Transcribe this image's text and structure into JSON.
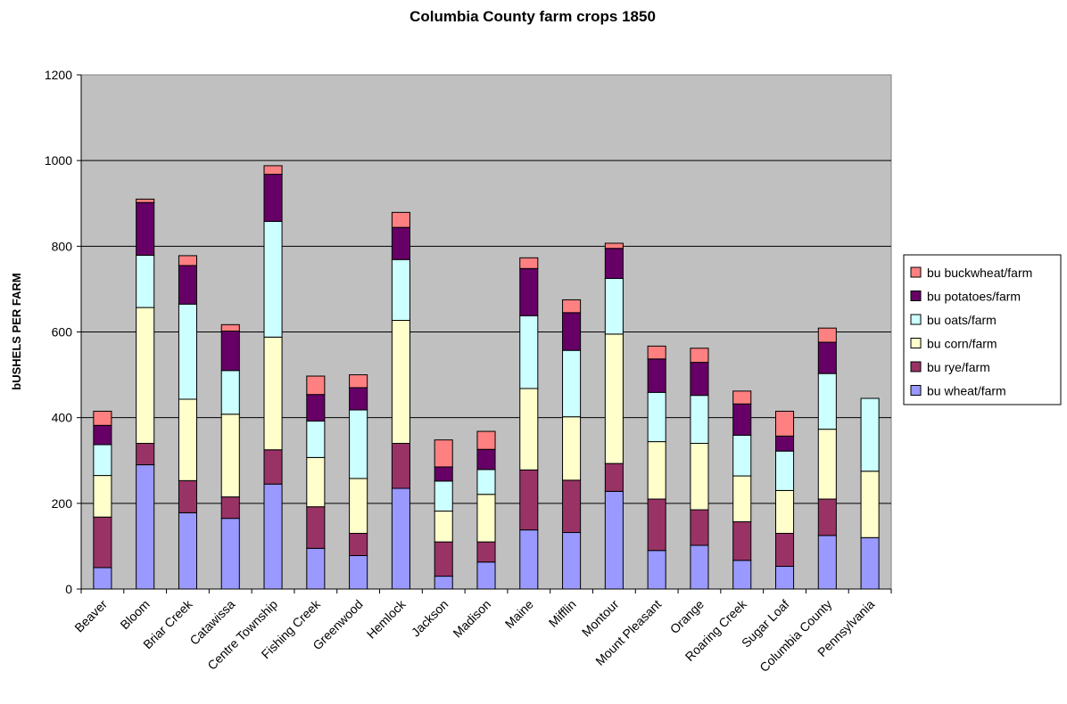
{
  "chart_data": {
    "type": "bar",
    "stacked": true,
    "title": "Columbia County farm crops 1850",
    "xlabel": "",
    "ylabel": "bUSHELS PER FARM",
    "ylim": [
      0,
      1200
    ],
    "yticks": [
      0,
      200,
      400,
      600,
      800,
      1000,
      1200
    ],
    "grid": true,
    "legend_position": "right",
    "categories": [
      "Beaver",
      "Bloom",
      "Briar Creek",
      "Catawissa",
      "Centre Township",
      "Fishing Creek",
      "Greenwood",
      "Hemlock",
      "Jackson",
      "Madison",
      "Maine",
      "Mifflin",
      "Montour",
      "Mount Pleasant",
      "Orange",
      "Roaring Creek",
      "Sugar Loaf",
      "Columbia County",
      "Pennsylvania"
    ],
    "series": [
      {
        "name": "bu wheat/farm",
        "color": "#9999ff",
        "values": [
          50,
          290,
          178,
          165,
          245,
          95,
          78,
          235,
          30,
          63,
          138,
          132,
          228,
          90,
          102,
          67,
          53,
          125,
          120
        ]
      },
      {
        "name": "bu rye/farm",
        "color": "#993366",
        "values": [
          118,
          50,
          75,
          50,
          80,
          97,
          52,
          105,
          80,
          47,
          140,
          122,
          65,
          120,
          83,
          90,
          77,
          85,
          0
        ]
      },
      {
        "name": "bu corn/farm",
        "color": "#ffffcc",
        "values": [
          97,
          317,
          190,
          193,
          263,
          115,
          128,
          287,
          72,
          111,
          190,
          148,
          302,
          134,
          155,
          107,
          100,
          163,
          155
        ]
      },
      {
        "name": "bu oats/farm",
        "color": "#ccffff",
        "values": [
          72,
          122,
          222,
          102,
          270,
          85,
          160,
          142,
          70,
          58,
          170,
          155,
          130,
          115,
          112,
          95,
          92,
          130,
          170
        ]
      },
      {
        "name": "bu potatoes/farm",
        "color": "#660066",
        "values": [
          45,
          123,
          90,
          92,
          110,
          62,
          52,
          75,
          33,
          47,
          110,
          88,
          70,
          78,
          77,
          73,
          35,
          73,
          0
        ]
      },
      {
        "name": "bu buckwheat/farm",
        "color": "#ff8080",
        "values": [
          33,
          8,
          23,
          15,
          20,
          43,
          30,
          35,
          63,
          42,
          25,
          30,
          12,
          30,
          33,
          30,
          58,
          33,
          0
        ]
      }
    ],
    "plot_background": "#c0c0c0",
    "bar_outline": "#000000"
  }
}
